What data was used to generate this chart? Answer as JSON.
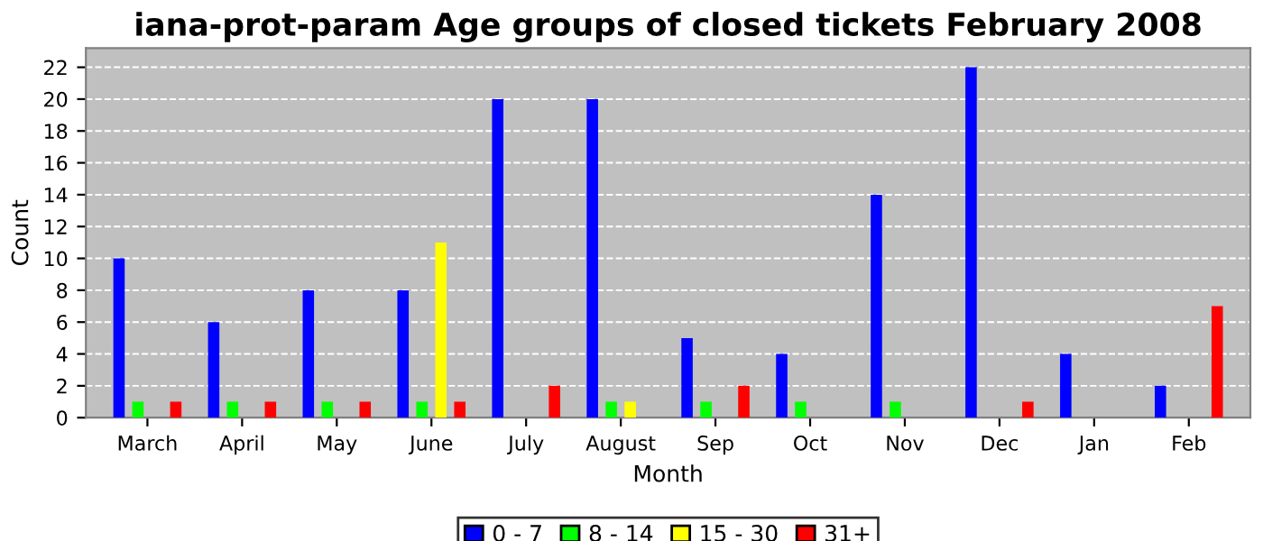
{
  "chart_data": {
    "type": "bar",
    "title": "iana-prot-param Age groups of closed tickets February 2008",
    "xlabel": "Month",
    "ylabel": "Count",
    "categories": [
      "March",
      "April",
      "May",
      "June",
      "July",
      "August",
      "Sep",
      "Oct",
      "Nov",
      "Dec",
      "Jan",
      "Feb"
    ],
    "series": [
      {
        "name": "0 - 7",
        "color": "#0000ff",
        "values": [
          10,
          6,
          8,
          8,
          20,
          20,
          5,
          4,
          14,
          22,
          4,
          2
        ]
      },
      {
        "name": "8 - 14",
        "color": "#00ff00",
        "values": [
          1,
          1,
          1,
          1,
          0,
          1,
          1,
          1,
          1,
          0,
          0,
          0
        ]
      },
      {
        "name": "15 - 30",
        "color": "#ffff00",
        "values": [
          0,
          0,
          0,
          11,
          0,
          1,
          0,
          0,
          0,
          0,
          0,
          0
        ]
      },
      {
        "name": "31+",
        "color": "#ff0000",
        "values": [
          1,
          1,
          1,
          1,
          2,
          0,
          2,
          0,
          0,
          1,
          0,
          7
        ]
      }
    ],
    "ylim": [
      0,
      23.2
    ],
    "yticks": [
      0,
      2,
      4,
      6,
      8,
      10,
      12,
      14,
      16,
      18,
      20,
      22
    ],
    "grid": "y",
    "legend": "bottom"
  }
}
